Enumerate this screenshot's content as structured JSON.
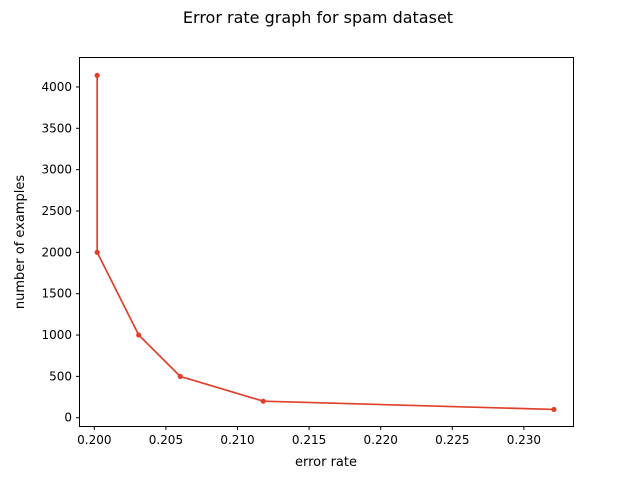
{
  "chart_data": {
    "type": "line",
    "title": "Error rate graph for spam dataset",
    "xlabel": "error rate",
    "ylabel": "number of examples",
    "xlim": [
      0.199,
      0.2335
    ],
    "ylim": [
      -100,
      4350
    ],
    "xticks": [
      0.2,
      0.205,
      0.21,
      0.215,
      0.22,
      0.225,
      0.23
    ],
    "xtick_labels": [
      "0.200",
      "0.205",
      "0.210",
      "0.215",
      "0.220",
      "0.225",
      "0.230"
    ],
    "yticks": [
      0,
      500,
      1000,
      1500,
      2000,
      2500,
      3000,
      3500,
      4000
    ],
    "ytick_labels": [
      "0",
      "500",
      "1000",
      "1500",
      "2000",
      "2500",
      "3000",
      "3500",
      "4000"
    ],
    "grid": false,
    "series": [
      {
        "color": "#e0402a",
        "x": [
          0.2002,
          0.2002,
          0.2031,
          0.206,
          0.2118,
          0.2321
        ],
        "y": [
          4140,
          2000,
          1000,
          500,
          200,
          100
        ]
      }
    ]
  }
}
